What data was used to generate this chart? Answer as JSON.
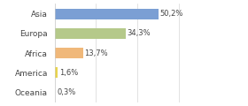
{
  "categories": [
    "Asia",
    "Europa",
    "Africa",
    "America",
    "Oceania"
  ],
  "values": [
    50.2,
    34.3,
    13.7,
    1.6,
    0.3
  ],
  "labels": [
    "50,2%",
    "34,3%",
    "13,7%",
    "1,6%",
    "0,3%"
  ],
  "bar_colors": [
    "#7b9fd4",
    "#b5c98a",
    "#f0b87a",
    "#e8d44d",
    "#f08878"
  ],
  "background_color": "#ffffff",
  "xlim": [
    0,
    72
  ]
}
